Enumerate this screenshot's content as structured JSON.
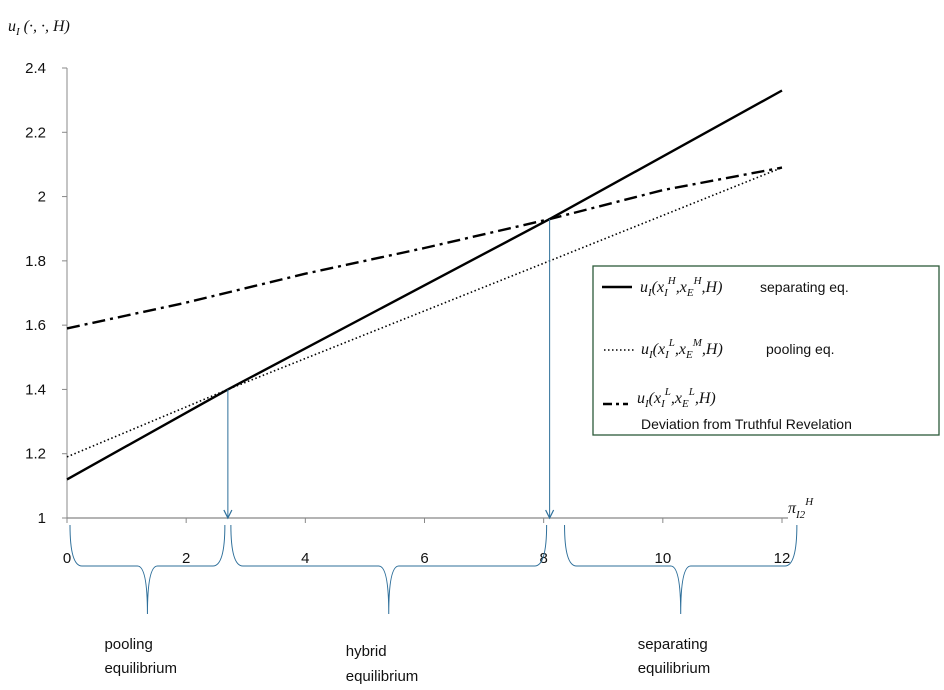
{
  "chart_data": {
    "type": "line",
    "ylabel": {
      "main": "u",
      "sub": "I",
      "rest": " (·, ·, H)"
    },
    "xlabel": {
      "main": "π",
      "sub": "I2",
      "sup": "H"
    },
    "xlim": [
      0,
      12
    ],
    "ylim": [
      1,
      2.4
    ],
    "x_ticks": [
      "0",
      "2",
      "4",
      "6",
      "8",
      "10",
      "12"
    ],
    "y_ticks": [
      "1",
      "1.2",
      "1.4",
      "1.6",
      "1.8",
      "2",
      "2.2",
      "2.4"
    ],
    "series": [
      {
        "key": "separating",
        "style": "solid",
        "x": [
          0,
          2.7,
          8.1,
          12
        ],
        "y": [
          1.12,
          1.4,
          1.93,
          2.33
        ]
      },
      {
        "key": "pooling",
        "style": "dotted",
        "x": [
          0,
          2.7,
          8.1,
          12
        ],
        "y": [
          1.19,
          1.4,
          1.8,
          2.09
        ]
      },
      {
        "key": "deviation",
        "style": "dashdot",
        "x": [
          0,
          2,
          4,
          6,
          8.1,
          10,
          12
        ],
        "y": [
          1.59,
          1.67,
          1.76,
          1.84,
          1.93,
          2.02,
          2.09
        ]
      }
    ],
    "legend": {
      "placement": "right",
      "entries": [
        {
          "math": "u_I(x_I^H,x_E^H,H)",
          "text": "separating eq."
        },
        {
          "math": "u_I(x_I^L,x_E^M,H)",
          "text": "pooling eq."
        },
        {
          "math": "u_I(x_I^L,x_E^L,H)",
          "text": "Deviation from Truthful Revelation"
        }
      ]
    },
    "thresholds": [
      {
        "x": 2.7,
        "y": 1.4
      },
      {
        "x": 8.1,
        "y": 1.93
      }
    ],
    "regions": [
      {
        "line1": "pooling",
        "line2": "equilibrium",
        "x_from": 0,
        "x_to": 2.7
      },
      {
        "line1": "hybrid",
        "line2": "equilibrium",
        "x_from": 2.7,
        "x_to": 8.1
      },
      {
        "line1": "separating",
        "line2": "equilibrium",
        "x_from": 8.3,
        "x_to": 12.3
      }
    ],
    "colors": {
      "lines": "#000000",
      "axis": "#888888",
      "arrows": "#2e6f9a",
      "braces": "#2e6f9a",
      "legend_border": "#2d5a3a"
    }
  }
}
